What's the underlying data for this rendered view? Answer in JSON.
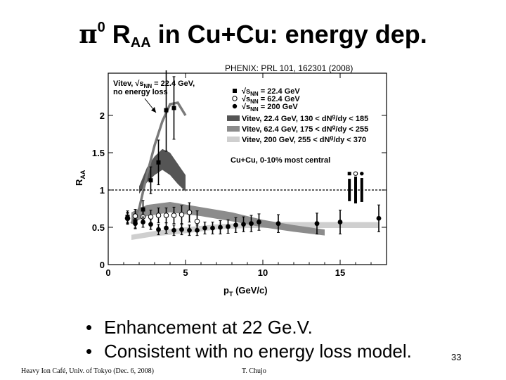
{
  "slide": {
    "title_symbol": "π",
    "title_sup": "0",
    "title_r": "R",
    "title_sub": "AA",
    "title_rest": " in Cu+Cu: energy dep.",
    "citation": "PHENIX: PRL 101, 162301 (2008)",
    "bullets": [
      "Enhancement at 22 Ge.V.",
      "Consistent with no energy loss model."
    ],
    "page_number": "33",
    "footer_left": "Heavy Ion Café, Univ. of Tokyo (Dec. 6, 2008)",
    "footer_right": "T. Chujo"
  },
  "chart_data": {
    "type": "scatter",
    "xlabel": "p",
    "xlabel_sub": "T",
    "xlabel_unit": " (GeV/c)",
    "ylabel": "R",
    "ylabel_sub": "AA",
    "xlim": [
      0,
      18
    ],
    "ylim": [
      0,
      2.3
    ],
    "x_ticks": [
      0,
      5,
      10,
      15
    ],
    "y_ticks": [
      0,
      0.5,
      1,
      1.5,
      2
    ],
    "reference_line": 1,
    "annotation": {
      "line1": "Vitev, √s",
      "line1_sub": "NN",
      "line1_rest": " = 22.4 GeV,",
      "line2": "no energy loss"
    },
    "plot_label": "Cu+Cu, 0-10% most central",
    "legend": [
      {
        "pre": "√s",
        "sub": "NN",
        "post": " = 22.4 GeV",
        "marker": "square"
      },
      {
        "pre": "√s",
        "sub": "NN",
        "post": " = 62.4 GeV",
        "marker": "open-circle"
      },
      {
        "pre": "√s",
        "sub": "NN",
        "post": " = 200 GeV",
        "marker": "filled-circle"
      },
      {
        "text": "Vitev, 22.4 GeV, 130 < dN",
        "sup": "g",
        "post": "/dy < 185",
        "swatch": "#555555"
      },
      {
        "text": "Vitev, 62.4 GeV, 175 < dN",
        "sup": "g",
        "post": "/dy < 255",
        "swatch": "#8c8c8c"
      },
      {
        "text": "Vitev, 200 GeV, 255 < dN",
        "sup": "g",
        "post": "/dy < 370",
        "swatch": "#cfcfcf"
      }
    ],
    "series": [
      {
        "name": "22.4 GeV",
        "marker": "square",
        "x": [
          1.25,
          1.75,
          2.25,
          2.75,
          3.25,
          3.75,
          4.25
        ],
        "y": [
          0.64,
          0.58,
          0.74,
          1.13,
          1.37,
          2.07,
          2.1
        ],
        "err": [
          0.08,
          0.09,
          0.12,
          0.18,
          0.3,
          0.55,
          0.42
        ]
      },
      {
        "name": "62.4 GeV",
        "marker": "open-circle",
        "x": [
          1.25,
          1.75,
          2.25,
          2.75,
          3.25,
          3.75,
          4.25,
          4.75,
          5.25,
          5.75
        ],
        "y": [
          0.62,
          0.65,
          0.64,
          0.64,
          0.66,
          0.66,
          0.66,
          0.67,
          0.7,
          0.58
        ],
        "err": [
          0.08,
          0.09,
          0.09,
          0.09,
          0.1,
          0.1,
          0.11,
          0.12,
          0.13,
          0.14
        ]
      },
      {
        "name": "200 GeV",
        "marker": "filled-circle",
        "x": [
          1.25,
          1.75,
          2.25,
          2.75,
          3.25,
          3.75,
          4.25,
          4.75,
          5.25,
          5.75,
          6.25,
          6.75,
          7.25,
          7.75,
          8.25,
          8.75,
          9.25,
          9.75,
          11,
          13.5,
          15,
          17.5
        ],
        "y": [
          0.62,
          0.55,
          0.57,
          0.54,
          0.47,
          0.49,
          0.46,
          0.47,
          0.46,
          0.46,
          0.49,
          0.49,
          0.5,
          0.51,
          0.53,
          0.54,
          0.55,
          0.57,
          0.55,
          0.55,
          0.57,
          0.62
        ],
        "err": [
          0.07,
          0.07,
          0.07,
          0.07,
          0.07,
          0.07,
          0.07,
          0.07,
          0.07,
          0.07,
          0.08,
          0.08,
          0.09,
          0.09,
          0.1,
          0.1,
          0.11,
          0.11,
          0.12,
          0.14,
          0.16,
          0.18
        ]
      }
    ],
    "bands": [
      {
        "name": "Vitev, 22.4 GeV",
        "color": "#555555",
        "x": [
          2,
          2.5,
          3,
          3.5,
          4,
          4.5,
          5
        ],
        "lo": [
          0.95,
          1.1,
          1.2,
          1.27,
          1.2,
          1.08,
          0.98
        ],
        "hi": [
          1.05,
          1.3,
          1.45,
          1.55,
          1.5,
          1.35,
          1.2
        ]
      },
      {
        "name": "Vitev, 62.4 GeV",
        "color": "#8c8c8c",
        "x": [
          1.5,
          2.5,
          4,
          6,
          8,
          10,
          12,
          14
        ],
        "lo": [
          0.55,
          0.65,
          0.7,
          0.65,
          0.58,
          0.5,
          0.44,
          0.39
        ],
        "hi": [
          0.7,
          0.8,
          0.84,
          0.77,
          0.7,
          0.6,
          0.53,
          0.47
        ]
      },
      {
        "name": "Vitev, 200 GeV",
        "color": "#cfcfcf",
        "x": [
          1.5,
          3,
          5,
          7,
          9,
          11,
          13,
          15,
          17.5
        ],
        "lo": [
          0.33,
          0.38,
          0.42,
          0.47,
          0.49,
          0.49,
          0.49,
          0.49,
          0.49
        ],
        "hi": [
          0.4,
          0.45,
          0.5,
          0.54,
          0.56,
          0.57,
          0.57,
          0.57,
          0.57
        ]
      }
    ],
    "no_eloss_curve": {
      "x": [
        1.5,
        2,
        2.5,
        3,
        3.5,
        4,
        4.5,
        5
      ],
      "y": [
        0.55,
        0.75,
        1.2,
        1.6,
        1.92,
        2.15,
        2.17,
        2.0
      ]
    },
    "normalization_errors": [
      {
        "marker": "square",
        "lo": 0.85,
        "hi": 1.15
      },
      {
        "marker": "open-circle",
        "lo": 0.82,
        "hi": 1.18
      },
      {
        "marker": "filled-circle",
        "lo": 0.84,
        "hi": 1.16
      }
    ]
  }
}
